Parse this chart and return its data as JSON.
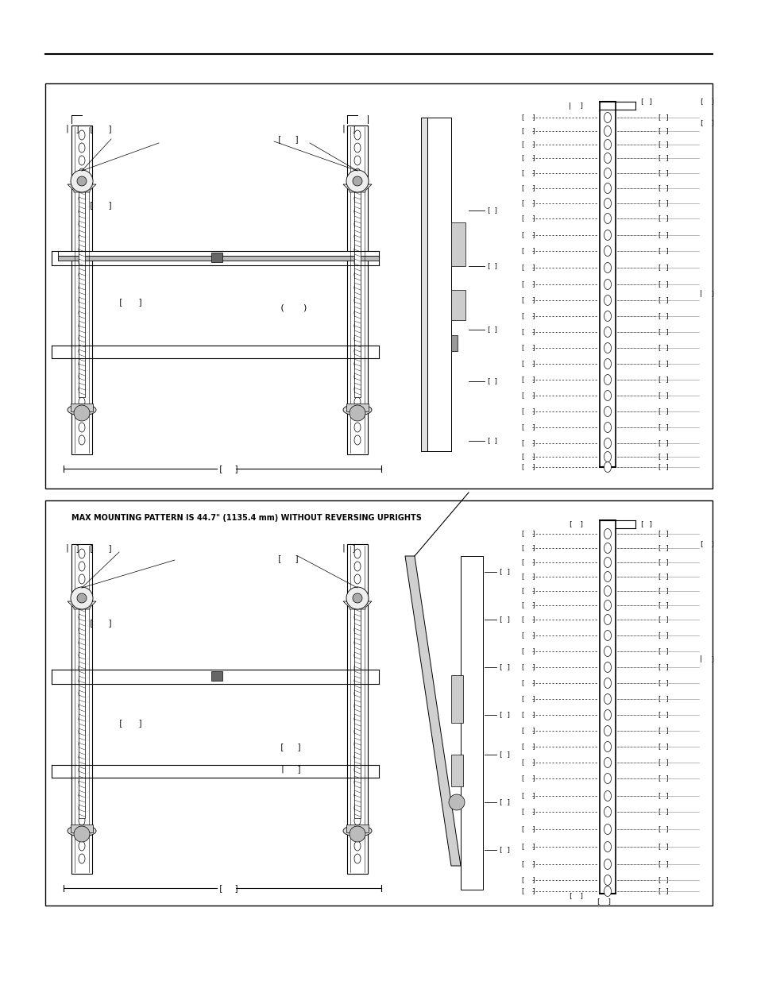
{
  "bg_color": "#ffffff",
  "line_color": "#000000",
  "gray_color": "#888888",
  "light_gray": "#cccccc",
  "figsize": [
    9.54,
    12.35
  ],
  "dpi": 100,
  "panel2_title": "MAX MOUNTING PATTERN IS 44.7\" (1135.4 mm) WITHOUT REVERSING UPRIGHTS"
}
